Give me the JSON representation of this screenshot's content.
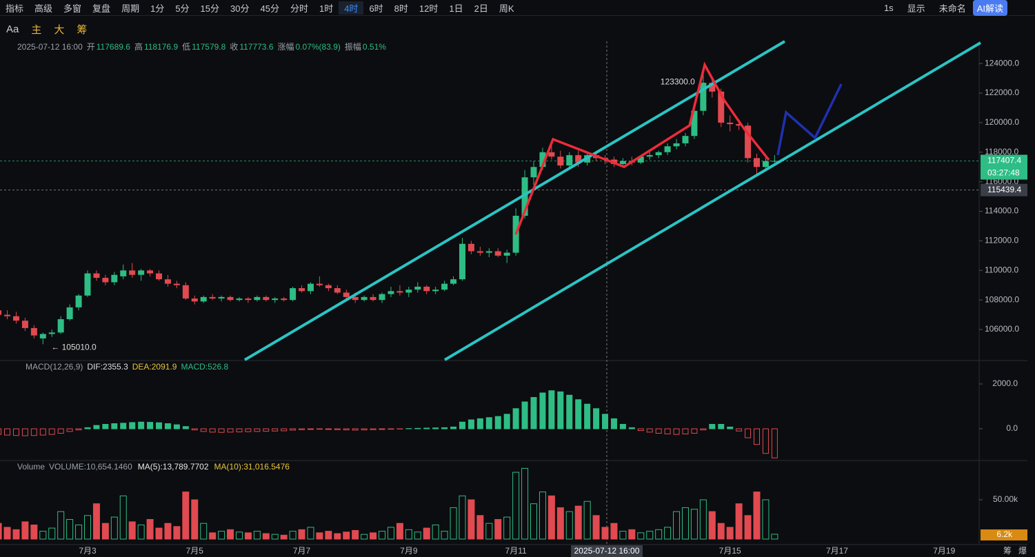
{
  "toolbar": {
    "left": [
      "指标",
      "高级",
      "多窗",
      "复盘",
      "周期"
    ],
    "periods": [
      "1分",
      "5分",
      "15分",
      "30分",
      "45分",
      "分时",
      "1时",
      "4时",
      "6时",
      "8时",
      "12时",
      "1日",
      "2日",
      "周K"
    ],
    "active_period": "4时",
    "right": [
      "1s",
      "显示",
      "未命名",
      "AI解读"
    ]
  },
  "tools": [
    "Aa",
    "主",
    "大",
    "筹"
  ],
  "info_bar": {
    "date": "2025-07-12 16:00",
    "open_label": "开",
    "open": "117689.6",
    "high_label": "高",
    "high": "118176.9",
    "low_label": "低",
    "low": "117579.8",
    "close_label": "收",
    "close": "117773.6",
    "change_label": "涨幅",
    "change": "0.07%(83.9)",
    "amplitude_label": "振幅",
    "amplitude": "0.51%"
  },
  "time_axis": {
    "labels": [
      "7月3",
      "7月5",
      "7月7",
      "7月9",
      "7月11",
      null,
      "7月15",
      "7月17",
      "7月19"
    ],
    "crosshair": "2025-07-12 16:00"
  },
  "corner": [
    "筹",
    "爆"
  ],
  "chart_data": [
    {
      "type": "candlestick",
      "up_color": "#2ebd85",
      "down_color": "#e04a50",
      "ylim": [
        103950,
        125500
      ],
      "yticks": [
        {
          "value": 106000,
          "label": "106000.0"
        },
        {
          "value": 108000,
          "label": "108000.0"
        },
        {
          "value": 110000,
          "label": "110000.0"
        },
        {
          "value": 112000,
          "label": "112000.0"
        },
        {
          "value": 114000,
          "label": "114000.0"
        },
        {
          "value": 116000,
          "label": "116000.0"
        },
        {
          "value": 118000,
          "label": "118000.0"
        },
        {
          "value": 120000,
          "label": "120000.0"
        },
        {
          "value": 122000,
          "label": "122000.0"
        },
        {
          "value": 124000,
          "label": "124000.0"
        }
      ],
      "last_price": 117407.4,
      "countdown": "03:27:48",
      "crosshair_price": 115439.4,
      "high_mark": {
        "value": 123300,
        "label": "123300.0"
      },
      "low_mark": {
        "value": 105010,
        "label": "← 105010.0"
      },
      "candles": [
        [
          107300,
          107500,
          106800,
          107000
        ],
        [
          107000,
          107300,
          106700,
          106900
        ],
        [
          106900,
          107200,
          106400,
          106600
        ],
        [
          106600,
          106800,
          105900,
          106100
        ],
        [
          106100,
          106300,
          105400,
          105600
        ],
        [
          105400,
          105800,
          105010,
          105700
        ],
        [
          105700,
          106000,
          105500,
          105800
        ],
        [
          105800,
          106900,
          105700,
          106700
        ],
        [
          106700,
          107700,
          106600,
          107500
        ],
        [
          107500,
          108400,
          107300,
          108300
        ],
        [
          108300,
          110000,
          108200,
          109800
        ],
        [
          109800,
          110000,
          109300,
          109500
        ],
        [
          109500,
          109700,
          109000,
          109200
        ],
        [
          109200,
          109900,
          109000,
          109700
        ],
        [
          109600,
          110400,
          109400,
          110000
        ],
        [
          110000,
          110500,
          109500,
          109700
        ],
        [
          109700,
          110100,
          109300,
          110000
        ],
        [
          110000,
          110100,
          109600,
          109800
        ],
        [
          109800,
          110000,
          109300,
          109400
        ],
        [
          109400,
          109700,
          108900,
          109100
        ],
        [
          109100,
          109300,
          108800,
          109000
        ],
        [
          109000,
          109200,
          108000,
          108100
        ],
        [
          108100,
          108300,
          107700,
          107900
        ],
        [
          107900,
          108300,
          107800,
          108200
        ],
        [
          108200,
          108400,
          108000,
          108100
        ],
        [
          108100,
          108300,
          107900,
          108200
        ],
        [
          108200,
          108300,
          107900,
          108000
        ],
        [
          108000,
          108200,
          107900,
          108100
        ],
        [
          108100,
          108200,
          107800,
          108000
        ],
        [
          108000,
          108300,
          107900,
          108200
        ],
        [
          108200,
          108300,
          107900,
          108000
        ],
        [
          108000,
          108200,
          107800,
          108100
        ],
        [
          108100,
          108200,
          107900,
          108000
        ],
        [
          108000,
          108900,
          107900,
          108800
        ],
        [
          108800,
          109000,
          108500,
          108600
        ],
        [
          108600,
          109200,
          108400,
          109100
        ],
        [
          109100,
          109600,
          108900,
          109000
        ],
        [
          109000,
          109100,
          108600,
          108800
        ],
        [
          108800,
          109000,
          108400,
          108500
        ],
        [
          108500,
          108700,
          108100,
          108200
        ],
        [
          108200,
          108500,
          107800,
          108000
        ],
        [
          108000,
          108300,
          107900,
          108200
        ],
        [
          108200,
          108400,
          107900,
          108000
        ],
        [
          108000,
          108500,
          107800,
          108400
        ],
        [
          108400,
          108900,
          108200,
          108600
        ],
        [
          108600,
          109000,
          108300,
          108500
        ],
        [
          108500,
          108900,
          108200,
          108700
        ],
        [
          108700,
          109200,
          108500,
          108900
        ],
        [
          108900,
          109000,
          108400,
          108600
        ],
        [
          108600,
          108900,
          108400,
          108700
        ],
        [
          108700,
          109300,
          108600,
          109100
        ],
        [
          109100,
          109600,
          109000,
          109400
        ],
        [
          109400,
          112200,
          109300,
          111800
        ],
        [
          111800,
          112000,
          111100,
          111300
        ],
        [
          111300,
          111600,
          111000,
          111200
        ],
        [
          111200,
          111500,
          110900,
          111300
        ],
        [
          111300,
          111500,
          110900,
          111000
        ],
        [
          111000,
          111400,
          110500,
          111200
        ],
        [
          111200,
          114200,
          111000,
          113700
        ],
        [
          113700,
          116800,
          113500,
          116300
        ],
        [
          116300,
          117400,
          115800,
          117000
        ],
        [
          117000,
          118300,
          116800,
          118000
        ],
        [
          118000,
          118500,
          117500,
          117700
        ],
        [
          117700,
          118100,
          116900,
          117100
        ],
        [
          117100,
          118000,
          116900,
          117800
        ],
        [
          117800,
          118100,
          117000,
          117300
        ],
        [
          117300,
          118000,
          117100,
          117800
        ],
        [
          117800,
          118000,
          117400,
          117600
        ],
        [
          117600,
          117800,
          117200,
          117500
        ],
        [
          117500,
          117700,
          117000,
          117200
        ],
        [
          117200,
          117600,
          117000,
          117400
        ],
        [
          117400,
          117700,
          117100,
          117300
        ],
        [
          117300,
          117800,
          117200,
          117700
        ],
        [
          117700,
          118000,
          117500,
          117800
        ],
        [
          117800,
          118100,
          117600,
          118000
        ],
        [
          118000,
          118600,
          117800,
          118400
        ],
        [
          118400,
          118900,
          118200,
          118600
        ],
        [
          118600,
          119300,
          118400,
          119100
        ],
        [
          119100,
          121000,
          118900,
          120800
        ],
        [
          120800,
          123300,
          120500,
          122700
        ],
        [
          122700,
          123000,
          121700,
          122100
        ],
        [
          122100,
          122300,
          119700,
          120000
        ],
        [
          120000,
          120500,
          119400,
          119900
        ],
        [
          119900,
          120100,
          119500,
          119800
        ],
        [
          119800,
          120000,
          117300,
          117600
        ],
        [
          117600,
          117900,
          116500,
          117000
        ],
        [
          117000,
          117600,
          116800,
          117400
        ],
        [
          117400,
          117800,
          117300,
          117407.4
        ]
      ]
    },
    {
      "type": "macd",
      "title": "MACD(12,26,9)",
      "legend": [
        "DIF:2355.3",
        "DEA:2091.9",
        "MACD:526.8"
      ],
      "ylim": [
        -1415,
        3046
      ],
      "yticks": [
        {
          "value": 2000,
          "label": "2000.0"
        },
        {
          "value": 0,
          "label": "0.0"
        }
      ],
      "values": [
        -250,
        -280,
        -300,
        -310,
        -300,
        -280,
        -250,
        -200,
        -120,
        -50,
        50,
        150,
        200,
        230,
        250,
        280,
        300,
        290,
        270,
        230,
        180,
        100,
        -50,
        -120,
        -150,
        -160,
        -150,
        -140,
        -130,
        -120,
        -110,
        -100,
        -90,
        -60,
        -40,
        -30,
        -20,
        -30,
        -40,
        -50,
        -60,
        -50,
        -40,
        -30,
        -20,
        -10,
        10,
        20,
        30,
        40,
        50,
        80,
        300,
        400,
        450,
        500,
        550,
        650,
        900,
        1200,
        1400,
        1600,
        1700,
        1650,
        1500,
        1300,
        1100,
        900,
        650,
        450,
        200,
        50,
        -80,
        -150,
        -200,
        -230,
        -250,
        -230,
        -200,
        -50,
        200,
        200,
        80,
        -100,
        -400,
        -700,
        -1100,
        -1300
      ]
    },
    {
      "type": "volume",
      "title": "Volume",
      "legend": [
        "VOLUME:10,654.1460",
        "MA(5):13,789.7702",
        "MA(10):31,016.5476"
      ],
      "ylim": [
        0,
        100
      ],
      "yticks": [
        {
          "value": 50,
          "label": "50.00k"
        }
      ],
      "current": {
        "value": 6.2,
        "label": "6.2k"
      },
      "values": [
        20,
        15,
        12,
        22,
        18,
        10,
        14,
        35,
        25,
        18,
        30,
        45,
        20,
        28,
        55,
        22,
        18,
        25,
        14,
        20,
        16,
        60,
        50,
        20,
        8,
        10,
        12,
        9,
        8,
        10,
        7,
        6,
        5,
        10,
        12,
        15,
        8,
        10,
        7,
        9,
        11,
        6,
        8,
        10,
        15,
        20,
        12,
        9,
        14,
        18,
        10,
        40,
        55,
        50,
        30,
        20,
        25,
        28,
        85,
        90,
        45,
        60,
        55,
        40,
        35,
        42,
        48,
        30,
        15,
        20,
        10,
        12,
        8,
        10,
        12,
        15,
        35,
        40,
        38,
        50,
        35,
        20,
        15,
        45,
        30,
        60,
        50,
        6.2
      ]
    }
  ]
}
